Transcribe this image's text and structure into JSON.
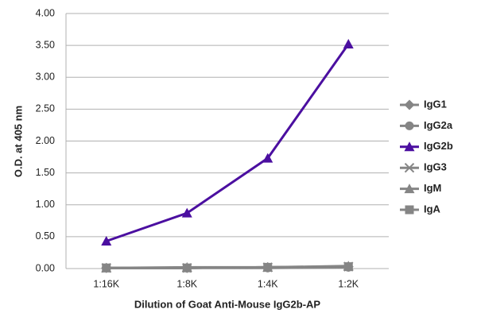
{
  "chart_data": {
    "type": "line",
    "x_label": "Dilution of Goat Anti-Mouse IgG2b-AP",
    "y_label": "O.D. at 405 nm",
    "categories": [
      "1:16K",
      "1:8K",
      "1:4K",
      "1:2K"
    ],
    "series": [
      {
        "name": "IgG1",
        "color": "#858585",
        "marker": "diamond",
        "values": [
          0.01,
          0.01,
          0.02,
          0.03
        ]
      },
      {
        "name": "IgG2a",
        "color": "#858585",
        "marker": "circle",
        "values": [
          0.01,
          0.01,
          0.01,
          0.02
        ]
      },
      {
        "name": "IgG2b",
        "color": "#4b0fa0",
        "marker": "triangle",
        "values": [
          0.43,
          0.87,
          1.73,
          3.52
        ]
      },
      {
        "name": "IgG3",
        "color": "#858585",
        "marker": "x",
        "values": [
          0.01,
          0.01,
          0.02,
          0.03
        ]
      },
      {
        "name": "IgM",
        "color": "#858585",
        "marker": "triangle",
        "values": [
          0.01,
          0.02,
          0.02,
          0.04
        ]
      },
      {
        "name": "IgA",
        "color": "#858585",
        "marker": "square",
        "values": [
          0.01,
          0.01,
          0.02,
          0.03
        ]
      }
    ],
    "ylim": [
      0,
      4
    ],
    "yticks": [
      {
        "value": 0,
        "label": "0.00"
      },
      {
        "value": 0.5,
        "label": "0.50"
      },
      {
        "value": 1,
        "label": "1.00"
      },
      {
        "value": 1.5,
        "label": "1.50"
      },
      {
        "value": 2,
        "label": "2.00"
      },
      {
        "value": 2.5,
        "label": "2.50"
      },
      {
        "value": 3,
        "label": "3.00"
      },
      {
        "value": 3.5,
        "label": "3.50"
      },
      {
        "value": 4,
        "label": "4.00"
      }
    ],
    "grid": true
  }
}
